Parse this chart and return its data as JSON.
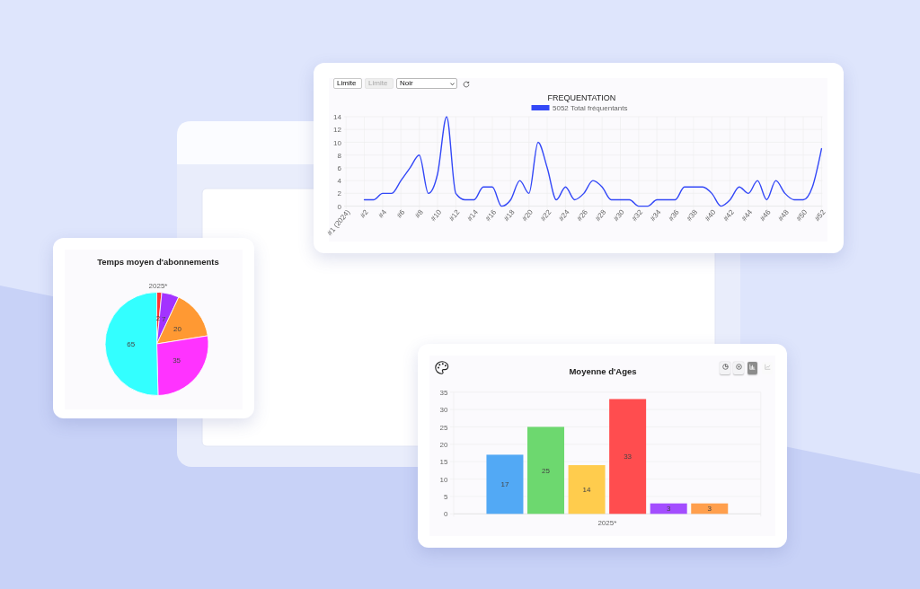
{
  "chart_data": [
    {
      "type": "line",
      "title": "FREQUENTATION",
      "categories": [
        "#1 (2024)",
        null,
        "#2",
        null,
        "#4",
        null,
        "#6",
        null,
        "#8",
        null,
        "#10",
        null,
        "#12",
        null,
        "#14",
        null,
        "#16",
        null,
        "#18",
        null,
        "#20",
        null,
        "#22",
        null,
        "#24",
        null,
        "#26",
        null,
        "#28",
        null,
        "#30",
        null,
        "#32",
        null,
        "#34",
        null,
        "#36",
        null,
        "#38",
        null,
        "#40",
        null,
        "#42",
        null,
        "#44",
        null,
        "#46",
        null,
        "#48",
        null,
        "#50",
        null,
        "#52"
      ],
      "series": [
        {
          "name": "5052 Total fréquentants",
          "color": "#3348f7",
          "values": [
            null,
            null,
            1,
            1,
            2,
            2,
            4,
            6,
            8,
            2,
            5,
            14,
            2,
            1,
            1,
            3,
            3,
            0,
            1,
            4,
            2,
            10,
            6,
            1,
            3,
            1,
            2,
            4,
            3,
            1,
            1,
            1,
            0,
            0,
            1,
            1,
            1,
            3,
            3,
            3,
            2,
            0,
            1,
            3,
            2,
            4,
            1,
            4,
            2,
            1,
            1,
            3,
            9
          ]
        }
      ],
      "ylim": [
        0,
        14
      ],
      "yticks": [
        0,
        2,
        4,
        6,
        8,
        10,
        12,
        14
      ],
      "grid": true,
      "legend": "top",
      "annotations": [
        "Limite",
        "Limite",
        "Noir"
      ]
    },
    {
      "type": "pie",
      "title": "Temps moyen d'abonnements",
      "subtitle": "2025*",
      "categories": [
        null,
        null,
        null,
        null,
        null
      ],
      "values": [
        2,
        7,
        20,
        35,
        65
      ],
      "colors": [
        "#ff3333",
        "#a333ff",
        "#ff9933",
        "#ff33ff",
        "#33ffff"
      ],
      "data_labels": true
    },
    {
      "type": "bar",
      "title": "Moyenne d'Ages",
      "categories": [
        "2025*"
      ],
      "series": [
        {
          "color": "#52a9f5",
          "values": [
            17
          ]
        },
        {
          "color": "#6dd86f",
          "values": [
            25
          ]
        },
        {
          "color": "#ffcc4d",
          "values": [
            14
          ]
        },
        {
          "color": "#ff4d4f",
          "values": [
            33
          ]
        },
        {
          "color": "#a34dff",
          "values": [
            3
          ]
        },
        {
          "color": "#ff9f4d",
          "values": [
            3
          ]
        }
      ],
      "ylim": [
        0,
        35
      ],
      "yticks": [
        0,
        5,
        10,
        15,
        20,
        25,
        30,
        35
      ],
      "grid": true,
      "data_labels": true
    }
  ]
}
